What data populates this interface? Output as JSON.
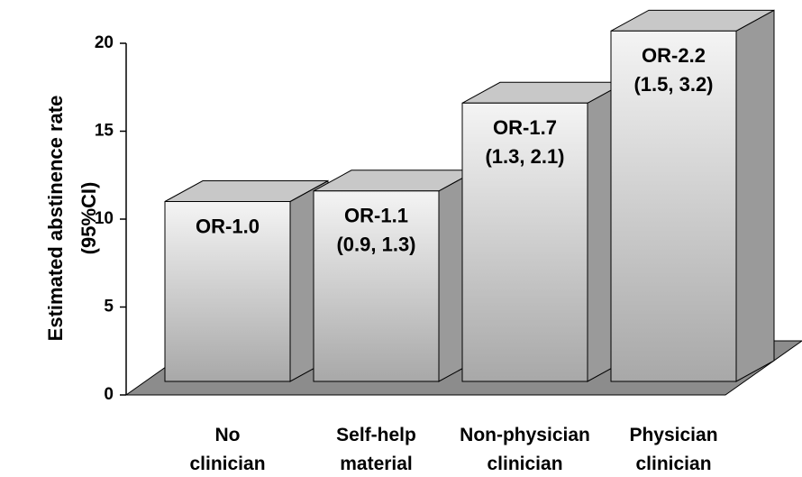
{
  "chart_data": {
    "type": "bar3d",
    "y_label": [
      "Estimated abstinence  rate",
      "(95%CI)"
    ],
    "categories": [
      "No clinician",
      "Self-help material",
      "Non-physician clinician",
      "Physician clinician"
    ],
    "values": [
      11.0,
      11.6,
      16.6,
      20.7
    ],
    "annotations": [
      [
        "OR-1.0"
      ],
      [
        "OR-1.1",
        "(0.9, 1.3)"
      ],
      [
        "OR-1.7",
        "(1.3, 2.1)"
      ],
      [
        "OR-2.2",
        "(1.5, 3.2)"
      ]
    ],
    "ylim": [
      0,
      20
    ],
    "yticks": [
      0,
      5,
      10,
      15,
      20
    ],
    "color": "#c8c8c8",
    "floor_color": "#8c8c8c"
  }
}
